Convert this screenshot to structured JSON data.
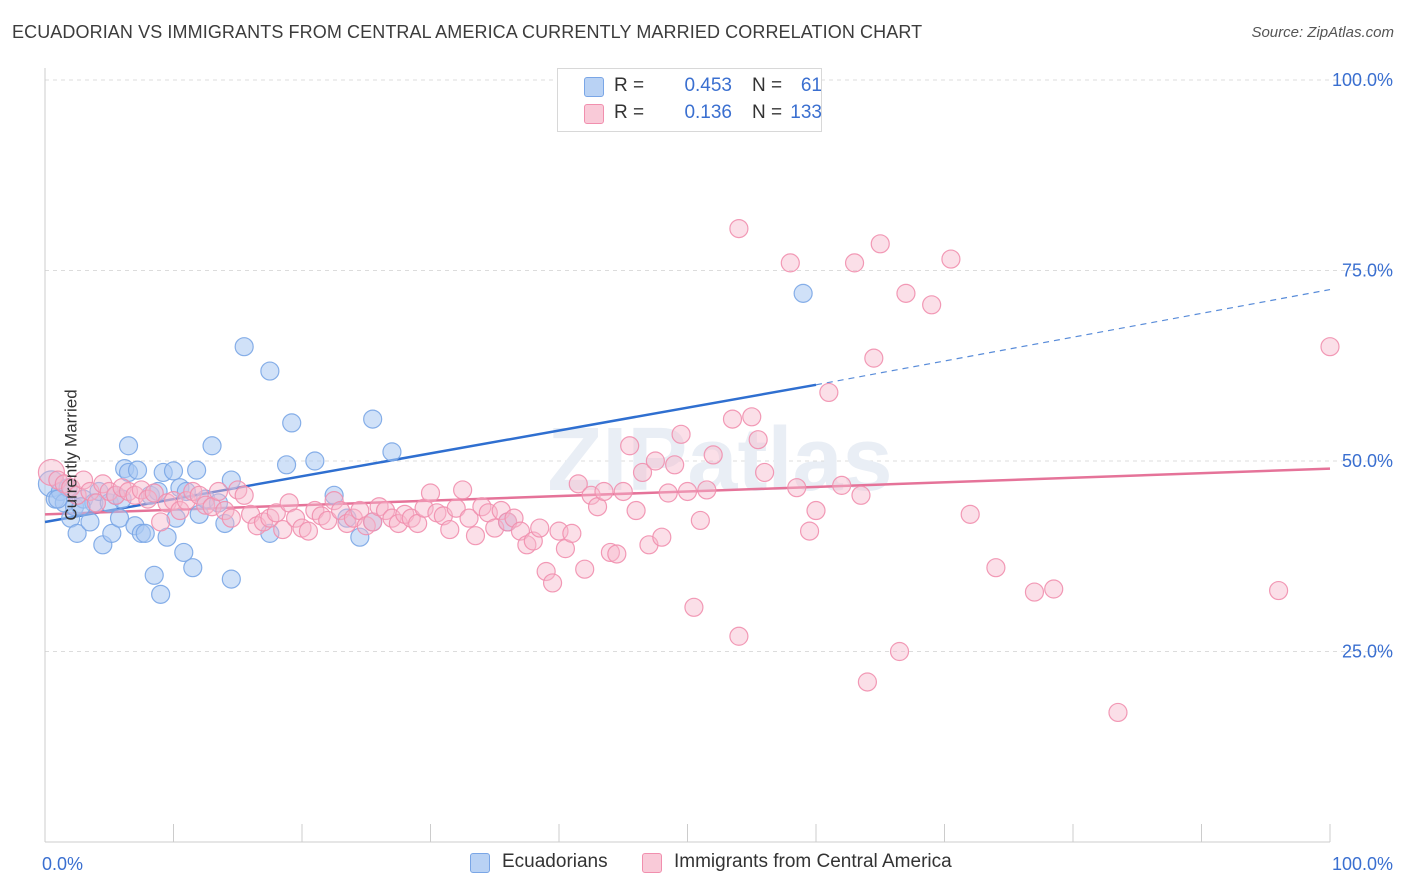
{
  "title": "ECUADORIAN VS IMMIGRANTS FROM CENTRAL AMERICA CURRENTLY MARRIED CORRELATION CHART",
  "source": "Source: ZipAtlas.com",
  "watermark": "ZIPatlas",
  "legend_top": {
    "rows": [
      {
        "r_label": "R =",
        "r_value": "0.453",
        "n_label": "N =",
        "n_value": "61",
        "color": "#a9c8f2"
      },
      {
        "r_label": "R =",
        "r_value": "0.136",
        "n_label": "N =",
        "n_value": "133",
        "color": "#f6b9cb"
      }
    ]
  },
  "legend_bottom": [
    {
      "label": "Ecuadorians",
      "color": "#a9c8f2"
    },
    {
      "label": "Immigrants from Central America",
      "color": "#f6b9cb"
    }
  ],
  "chart_data": {
    "type": "scatter",
    "title": "ECUADORIAN VS IMMIGRANTS FROM CENTRAL AMERICA CURRENTLY MARRIED CORRELATION CHART",
    "xlabel": "",
    "ylabel": "Currently Married",
    "xlim": [
      0,
      100
    ],
    "ylim": [
      0,
      100
    ],
    "x_tick_labels": [
      "0.0%",
      "100.0%"
    ],
    "y_tick_labels": [
      "25.0%",
      "50.0%",
      "75.0%",
      "100.0%"
    ],
    "y_ticks": [
      25,
      50,
      75,
      100
    ],
    "grid": true,
    "legend_position": "top-center",
    "series": [
      {
        "name": "Ecuadorians",
        "color": "#7aa6e6",
        "fill": "#a9c8f2",
        "line_color": "#2f6fd0",
        "trend": {
          "x0": 0,
          "y0": 42.0,
          "x1": 60,
          "y1": 60.0,
          "dash_to": 100,
          "dash_y": 72.5
        },
        "points": [
          [
            0.5,
            47
          ],
          [
            0.8,
            45
          ],
          [
            1.2,
            46
          ],
          [
            1.5,
            44.5
          ],
          [
            1.8,
            46.5
          ],
          [
            2.0,
            42.5
          ],
          [
            2.3,
            44
          ],
          [
            2.5,
            40.5
          ],
          [
            3.0,
            45
          ],
          [
            3.5,
            42
          ],
          [
            3.8,
            44.5
          ],
          [
            4.2,
            46
          ],
          [
            4.5,
            39
          ],
          [
            5.0,
            44.5
          ],
          [
            5.2,
            40.5
          ],
          [
            5.5,
            45.5
          ],
          [
            5.8,
            42.5
          ],
          [
            6.0,
            45
          ],
          [
            6.2,
            49
          ],
          [
            6.5,
            48.5
          ],
          [
            6.5,
            52
          ],
          [
            7.0,
            41.5
          ],
          [
            7.2,
            48.8
          ],
          [
            7.5,
            40.5
          ],
          [
            7.8,
            40.5
          ],
          [
            8.2,
            45.5
          ],
          [
            8.5,
            35
          ],
          [
            8.8,
            46
          ],
          [
            9.0,
            32.5
          ],
          [
            9.2,
            48.5
          ],
          [
            9.5,
            40
          ],
          [
            10.0,
            48.7
          ],
          [
            10.2,
            42.5
          ],
          [
            10.5,
            46.5
          ],
          [
            10.8,
            38
          ],
          [
            11.0,
            46
          ],
          [
            11.5,
            36
          ],
          [
            11.8,
            48.8
          ],
          [
            12.0,
            43
          ],
          [
            12.5,
            45
          ],
          [
            13.0,
            52
          ],
          [
            13.5,
            44.5
          ],
          [
            14.0,
            41.8
          ],
          [
            14.5,
            47.5
          ],
          [
            14.5,
            34.5
          ],
          [
            15.5,
            65
          ],
          [
            17.5,
            40.5
          ],
          [
            17.5,
            61.8
          ],
          [
            18.8,
            49.5
          ],
          [
            19.2,
            55
          ],
          [
            21.0,
            50
          ],
          [
            22.5,
            45.5
          ],
          [
            23.5,
            42.5
          ],
          [
            24.5,
            40
          ],
          [
            25.5,
            42
          ],
          [
            25.5,
            55.5
          ],
          [
            27.0,
            51.2
          ],
          [
            36.0,
            42
          ],
          [
            59.0,
            72
          ],
          [
            1.0,
            45
          ],
          [
            2.8,
            44
          ]
        ]
      },
      {
        "name": "Immigrants from Central America",
        "color": "#f18fae",
        "fill": "#f6b9cb",
        "line_color": "#e57399",
        "trend": {
          "x0": 0,
          "y0": 43.0,
          "x1": 100,
          "y1": 49.0
        },
        "points": [
          [
            0.5,
            48.5
          ],
          [
            1.0,
            47.5
          ],
          [
            1.5,
            47
          ],
          [
            2.0,
            46.5
          ],
          [
            2.5,
            45.5
          ],
          [
            3.0,
            47.5
          ],
          [
            3.5,
            46
          ],
          [
            4.0,
            44.5
          ],
          [
            4.5,
            47
          ],
          [
            5.0,
            46
          ],
          [
            5.5,
            45.5
          ],
          [
            6.0,
            46.5
          ],
          [
            6.5,
            46
          ],
          [
            7.0,
            45.5
          ],
          [
            7.5,
            46.2
          ],
          [
            8.0,
            45
          ],
          [
            8.5,
            45.8
          ],
          [
            9.0,
            42
          ],
          [
            9.5,
            44.5
          ],
          [
            10.0,
            44.8
          ],
          [
            10.5,
            43.5
          ],
          [
            11.0,
            44.8
          ],
          [
            11.5,
            46
          ],
          [
            12.0,
            45.5
          ],
          [
            12.5,
            44.2
          ],
          [
            13.0,
            44
          ],
          [
            13.5,
            46
          ],
          [
            14.0,
            43.5
          ],
          [
            14.5,
            42.5
          ],
          [
            15.0,
            46.2
          ],
          [
            15.5,
            45.5
          ],
          [
            16.0,
            43
          ],
          [
            16.5,
            41.5
          ],
          [
            17.0,
            42
          ],
          [
            17.5,
            42.5
          ],
          [
            18.0,
            43.2
          ],
          [
            18.5,
            41
          ],
          [
            19.0,
            44.5
          ],
          [
            19.5,
            42.5
          ],
          [
            20.0,
            41.2
          ],
          [
            20.5,
            40.8
          ],
          [
            21.0,
            43.5
          ],
          [
            21.5,
            42.8
          ],
          [
            22.0,
            42.2
          ],
          [
            22.5,
            44.8
          ],
          [
            23.0,
            43.5
          ],
          [
            23.5,
            41.8
          ],
          [
            24.0,
            42.5
          ],
          [
            24.5,
            43.5
          ],
          [
            25.0,
            41.5
          ],
          [
            25.5,
            42
          ],
          [
            26.0,
            44
          ],
          [
            26.5,
            43.5
          ],
          [
            27.0,
            42.5
          ],
          [
            27.5,
            41.8
          ],
          [
            28.0,
            43
          ],
          [
            28.5,
            42.5
          ],
          [
            29.0,
            41.8
          ],
          [
            29.5,
            43.8
          ],
          [
            30.0,
            45.8
          ],
          [
            30.5,
            43.2
          ],
          [
            31.0,
            42.8
          ],
          [
            31.5,
            41
          ],
          [
            32.0,
            43.8
          ],
          [
            32.5,
            46.2
          ],
          [
            33.0,
            42.5
          ],
          [
            33.5,
            40.2
          ],
          [
            34.0,
            44
          ],
          [
            34.5,
            43.2
          ],
          [
            35.0,
            41.2
          ],
          [
            35.5,
            43.5
          ],
          [
            36.0,
            42
          ],
          [
            36.5,
            42.5
          ],
          [
            37.0,
            40.8
          ],
          [
            37.5,
            39
          ],
          [
            38.0,
            39.5
          ],
          [
            38.5,
            41.2
          ],
          [
            39.0,
            35.5
          ],
          [
            39.5,
            34
          ],
          [
            40.0,
            40.8
          ],
          [
            40.5,
            38.5
          ],
          [
            41.0,
            40.5
          ],
          [
            41.5,
            47
          ],
          [
            42.0,
            35.8
          ],
          [
            42.5,
            45.5
          ],
          [
            43.0,
            44
          ],
          [
            43.5,
            46
          ],
          [
            44.0,
            38
          ],
          [
            44.5,
            37.8
          ],
          [
            45.0,
            46
          ],
          [
            45.5,
            52
          ],
          [
            46.0,
            43.5
          ],
          [
            46.5,
            48.5
          ],
          [
            47.0,
            39
          ],
          [
            47.5,
            50
          ],
          [
            48.0,
            40
          ],
          [
            48.5,
            45.8
          ],
          [
            49.0,
            49.5
          ],
          [
            49.5,
            53.5
          ],
          [
            50.0,
            46
          ],
          [
            50.5,
            30.8
          ],
          [
            51.0,
            42.2
          ],
          [
            51.5,
            46.2
          ],
          [
            52.0,
            50.8
          ],
          [
            53.5,
            55.5
          ],
          [
            54.0,
            27
          ],
          [
            54.0,
            80.5
          ],
          [
            55.0,
            55.8
          ],
          [
            55.5,
            52.8
          ],
          [
            56.0,
            48.5
          ],
          [
            58.0,
            76
          ],
          [
            58.5,
            46.5
          ],
          [
            59.5,
            40.8
          ],
          [
            60.0,
            43.5
          ],
          [
            61.0,
            59
          ],
          [
            62.0,
            46.8
          ],
          [
            63.0,
            76
          ],
          [
            63.5,
            45.5
          ],
          [
            64.0,
            21
          ],
          [
            64.5,
            63.5
          ],
          [
            65.0,
            78.5
          ],
          [
            66.5,
            25
          ],
          [
            67.0,
            72
          ],
          [
            69.0,
            70.5
          ],
          [
            70.5,
            76.5
          ],
          [
            72.0,
            43
          ],
          [
            74.0,
            36
          ],
          [
            77.0,
            32.8
          ],
          [
            78.5,
            33.2
          ],
          [
            83.5,
            17
          ],
          [
            96.0,
            33
          ],
          [
            100.0,
            65
          ]
        ]
      }
    ]
  }
}
